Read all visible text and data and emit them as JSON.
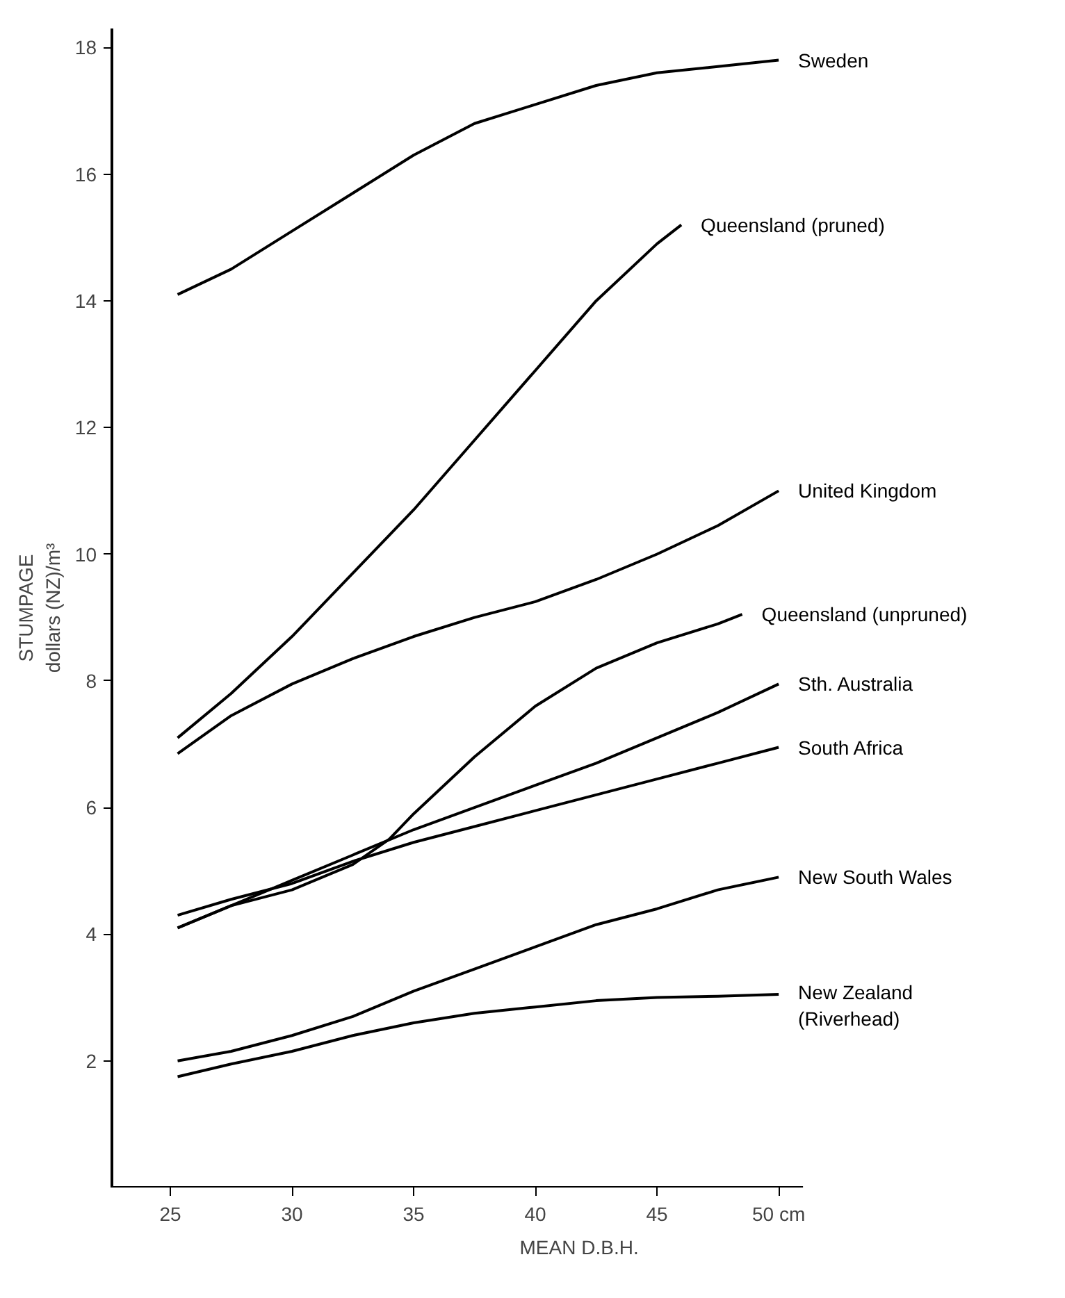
{
  "chart_data": {
    "type": "line",
    "xlabel": "MEAN  D.B.H.",
    "ylabel": "STUMPAGE\ndollars (NZ)/m³",
    "xlim": [
      22.6,
      51
    ],
    "ylim": [
      0,
      18.3
    ],
    "xticks": [
      25,
      30,
      35,
      40,
      45,
      {
        "value": 50,
        "label": "50 cm"
      }
    ],
    "yticks": [
      2,
      4,
      6,
      8,
      10,
      12,
      14,
      16,
      18
    ],
    "grid": false,
    "legend": false,
    "marker": "none",
    "line_style": "solid",
    "series": [
      {
        "name": "Sweden",
        "color": "#000000",
        "x": [
          25.3,
          27.5,
          30,
          32.5,
          35,
          37.5,
          40,
          42.5,
          45,
          47.5,
          50
        ],
        "values": [
          14.1,
          14.5,
          15.1,
          15.7,
          16.3,
          16.8,
          17.1,
          17.4,
          17.6,
          17.7,
          17.8
        ]
      },
      {
        "name": "Queensland (pruned)",
        "color": "#000000",
        "x": [
          25.3,
          27.5,
          30,
          32.5,
          35,
          37.5,
          40,
          42.5,
          45,
          46
        ],
        "values": [
          7.1,
          7.8,
          8.7,
          9.7,
          10.7,
          11.8,
          12.9,
          14.0,
          14.9,
          15.2
        ]
      },
      {
        "name": "United Kingdom",
        "color": "#000000",
        "x": [
          25.3,
          27.5,
          30,
          32.5,
          35,
          37.5,
          40,
          42.5,
          45,
          47.5,
          50
        ],
        "values": [
          6.85,
          7.45,
          7.95,
          8.35,
          8.7,
          9.0,
          9.25,
          9.6,
          10.0,
          10.45,
          11.0
        ]
      },
      {
        "name": "Queensland (unpruned)",
        "color": "#000000",
        "x": [
          25.3,
          27.5,
          30,
          32.5,
          34,
          35,
          37.5,
          40,
          42.5,
          45,
          47.5,
          48.5
        ],
        "values": [
          4.1,
          4.45,
          4.7,
          5.1,
          5.5,
          5.9,
          6.8,
          7.6,
          8.2,
          8.6,
          8.9,
          9.05
        ]
      },
      {
        "name": "Sth. Australia",
        "color": "#000000",
        "x": [
          25.3,
          27.5,
          30,
          32.5,
          35,
          37.5,
          40,
          42.5,
          45,
          47.5,
          50
        ],
        "values": [
          4.1,
          4.45,
          4.85,
          5.25,
          5.65,
          6.0,
          6.35,
          6.7,
          7.1,
          7.5,
          7.95
        ]
      },
      {
        "name": "South  Africa",
        "color": "#000000",
        "x": [
          25.3,
          27.5,
          30,
          32.5,
          35,
          37.5,
          40,
          42.5,
          45,
          47.5,
          50
        ],
        "values": [
          4.3,
          4.55,
          4.8,
          5.15,
          5.45,
          5.7,
          5.95,
          6.2,
          6.45,
          6.7,
          6.95
        ]
      },
      {
        "name": "New South Wales",
        "color": "#000000",
        "x": [
          25.3,
          27.5,
          30,
          32.5,
          35,
          37.5,
          40,
          42.5,
          45,
          47.5,
          50
        ],
        "values": [
          2.0,
          2.15,
          2.4,
          2.7,
          3.1,
          3.45,
          3.8,
          4.15,
          4.4,
          4.7,
          4.9
        ]
      },
      {
        "name": "New Zealand\n(Riverhead)",
        "color": "#000000",
        "x": [
          25.3,
          27.5,
          30,
          32.5,
          35,
          37.5,
          40,
          42.5,
          45,
          47.5,
          50
        ],
        "values": [
          1.75,
          1.95,
          2.15,
          2.4,
          2.6,
          2.75,
          2.85,
          2.95,
          3.0,
          3.02,
          3.05
        ]
      }
    ]
  }
}
